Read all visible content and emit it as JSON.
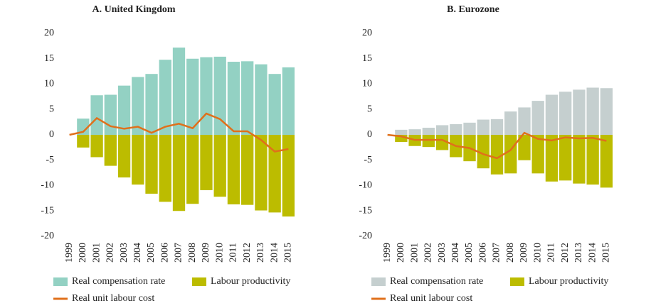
{
  "chart_data": [
    {
      "type": "bar",
      "title": "A. United Kingdom",
      "categories": [
        "1999",
        "2000",
        "2001",
        "2002",
        "2003",
        "2004",
        "2005",
        "2006",
        "2007",
        "2008",
        "2009",
        "2010",
        "2011",
        "2012",
        "2013",
        "2014",
        "2015"
      ],
      "series": [
        {
          "name": "Real compensation rate",
          "color": "#93d1c3",
          "type": "bar",
          "values": [
            null,
            3.2,
            7.8,
            7.9,
            9.7,
            11.4,
            12.0,
            14.8,
            17.2,
            15.0,
            15.3,
            15.4,
            14.4,
            14.5,
            13.9,
            12.0,
            13.3
          ]
        },
        {
          "name": "Labour productivity",
          "color": "#bcbc00",
          "type": "bar",
          "values": [
            null,
            -2.5,
            -4.4,
            -6.1,
            -8.4,
            -9.8,
            -11.6,
            -13.2,
            -15.0,
            -13.6,
            -10.9,
            -12.2,
            -13.7,
            -13.8,
            -14.9,
            -15.3,
            -16.1
          ]
        },
        {
          "name": "Real unit labour cost",
          "color": "#e0701b",
          "type": "line",
          "values": [
            0,
            0.6,
            3.3,
            1.7,
            1.2,
            1.6,
            0.4,
            1.6,
            2.2,
            1.3,
            4.2,
            3.1,
            0.7,
            0.7,
            -1.0,
            -3.3,
            -2.8
          ]
        }
      ],
      "ylim": [
        -20,
        20
      ],
      "yticks": [
        -20,
        -15,
        -10,
        -5,
        0,
        5,
        10,
        15,
        20
      ]
    },
    {
      "type": "bar",
      "title": "B. Eurozone",
      "categories": [
        "1999",
        "2000",
        "2001",
        "2002",
        "2003",
        "2004",
        "2005",
        "2006",
        "2007",
        "2008",
        "2009",
        "2010",
        "2011",
        "2012",
        "2013",
        "2014",
        "2015"
      ],
      "series": [
        {
          "name": "Real compensation rate",
          "color": "#c5cfcf",
          "type": "bar",
          "values": [
            null,
            1.0,
            1.1,
            1.4,
            1.9,
            2.1,
            2.4,
            3.0,
            3.1,
            4.6,
            5.4,
            6.7,
            7.9,
            8.5,
            8.9,
            9.3,
            9.2
          ]
        },
        {
          "name": "Labour productivity",
          "color": "#bcbc00",
          "type": "bar",
          "values": [
            null,
            -1.4,
            -2.2,
            -2.4,
            -3.0,
            -4.4,
            -5.2,
            -6.6,
            -7.8,
            -7.6,
            -5.0,
            -7.6,
            -9.2,
            -9.0,
            -9.6,
            -9.8,
            -10.4
          ]
        },
        {
          "name": "Real unit labour cost",
          "color": "#e0701b",
          "type": "line",
          "values": [
            0,
            -0.3,
            -1.0,
            -1.0,
            -1.0,
            -2.2,
            -2.6,
            -3.8,
            -4.6,
            -3.0,
            0.4,
            -0.8,
            -1.1,
            -0.5,
            -0.7,
            -0.6,
            -1.2
          ]
        }
      ],
      "ylim": [
        -20,
        20
      ],
      "yticks": [
        -20,
        -15,
        -10,
        -5,
        0,
        5,
        10,
        15,
        20
      ]
    }
  ]
}
